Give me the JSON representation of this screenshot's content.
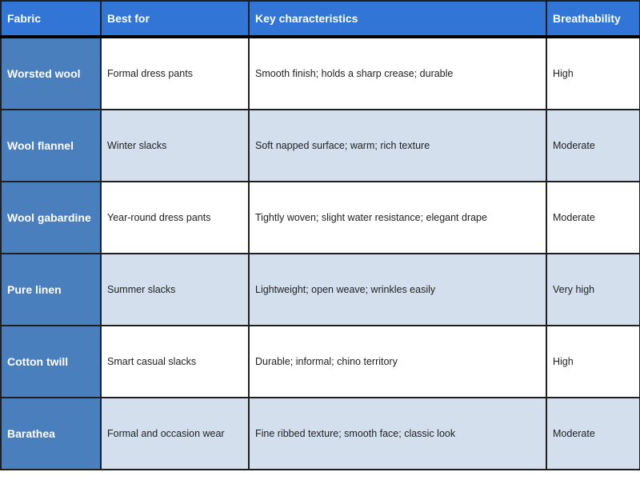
{
  "colors": {
    "header": "#3176d6",
    "first_column": "#4a7fbd",
    "alt_row": "#d4dfee"
  },
  "headers": [
    "Fabric",
    "Best for",
    "Key characteristics",
    "Breathability"
  ],
  "rows": [
    [
      "Worsted wool",
      "Formal dress pants",
      "Smooth finish; holds a sharp crease; durable",
      "High"
    ],
    [
      "Wool flannel",
      "Winter slacks",
      "Soft napped surface; warm; rich texture",
      "Moderate"
    ],
    [
      "Wool gabardine",
      "Year-round dress pants",
      "Tightly woven; slight water resistance; elegant drape",
      "Moderate"
    ],
    [
      "Pure linen",
      "Summer slacks",
      "Lightweight; open weave; wrinkles easily",
      "Very high"
    ],
    [
      "Cotton twill",
      "Smart casual slacks",
      "Durable; informal; chino territory",
      "High"
    ],
    [
      "Barathea",
      "Formal and occasion wear",
      "Fine ribbed texture; smooth face; classic look",
      "Moderate"
    ]
  ]
}
